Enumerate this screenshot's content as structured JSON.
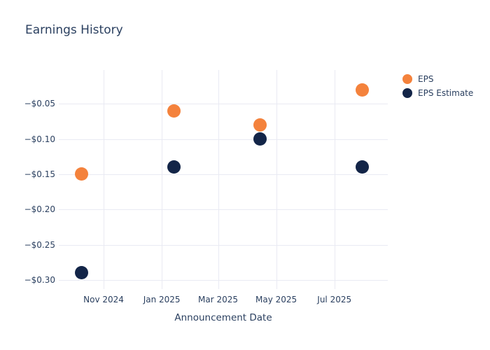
{
  "chart_data": {
    "type": "scatter",
    "title": "Earnings History",
    "xlabel": "Announcement Date",
    "ylabel": "",
    "x": [
      "2024-10-09",
      "2025-01-14",
      "2025-04-14",
      "2025-07-30"
    ],
    "series": [
      {
        "name": "EPS Estimate",
        "color": "#132548",
        "values": [
          -0.29,
          -0.14,
          -0.1,
          -0.14
        ]
      },
      {
        "name": "EPS",
        "color": "#f4823c",
        "values": [
          -0.15,
          -0.06,
          -0.08,
          -0.03
        ]
      }
    ],
    "x_ticks": [
      {
        "label": "Nov 2024",
        "date": "2024-11-01"
      },
      {
        "label": "Jan 2025",
        "date": "2025-01-01"
      },
      {
        "label": "Mar 2025",
        "date": "2025-03-01"
      },
      {
        "label": "May 2025",
        "date": "2025-05-01"
      },
      {
        "label": "Jul 2025",
        "date": "2025-07-01"
      }
    ],
    "y_ticks": [
      {
        "label": "−$0.05",
        "value": -0.05
      },
      {
        "label": "−$0.10",
        "value": -0.1
      },
      {
        "label": "−$0.15",
        "value": -0.15
      },
      {
        "label": "−$0.20",
        "value": -0.2
      },
      {
        "label": "−$0.25",
        "value": -0.25
      },
      {
        "label": "−$0.30",
        "value": -0.3
      }
    ],
    "x_range": [
      "2024-09-15",
      "2025-08-26"
    ],
    "ylim": [
      -0.313,
      -0.002
    ],
    "grid": true,
    "legend_position": "right-top",
    "colors": {
      "text": "#2a3f5f",
      "grid": "#e9eaf3",
      "background": "#ffffff"
    }
  }
}
